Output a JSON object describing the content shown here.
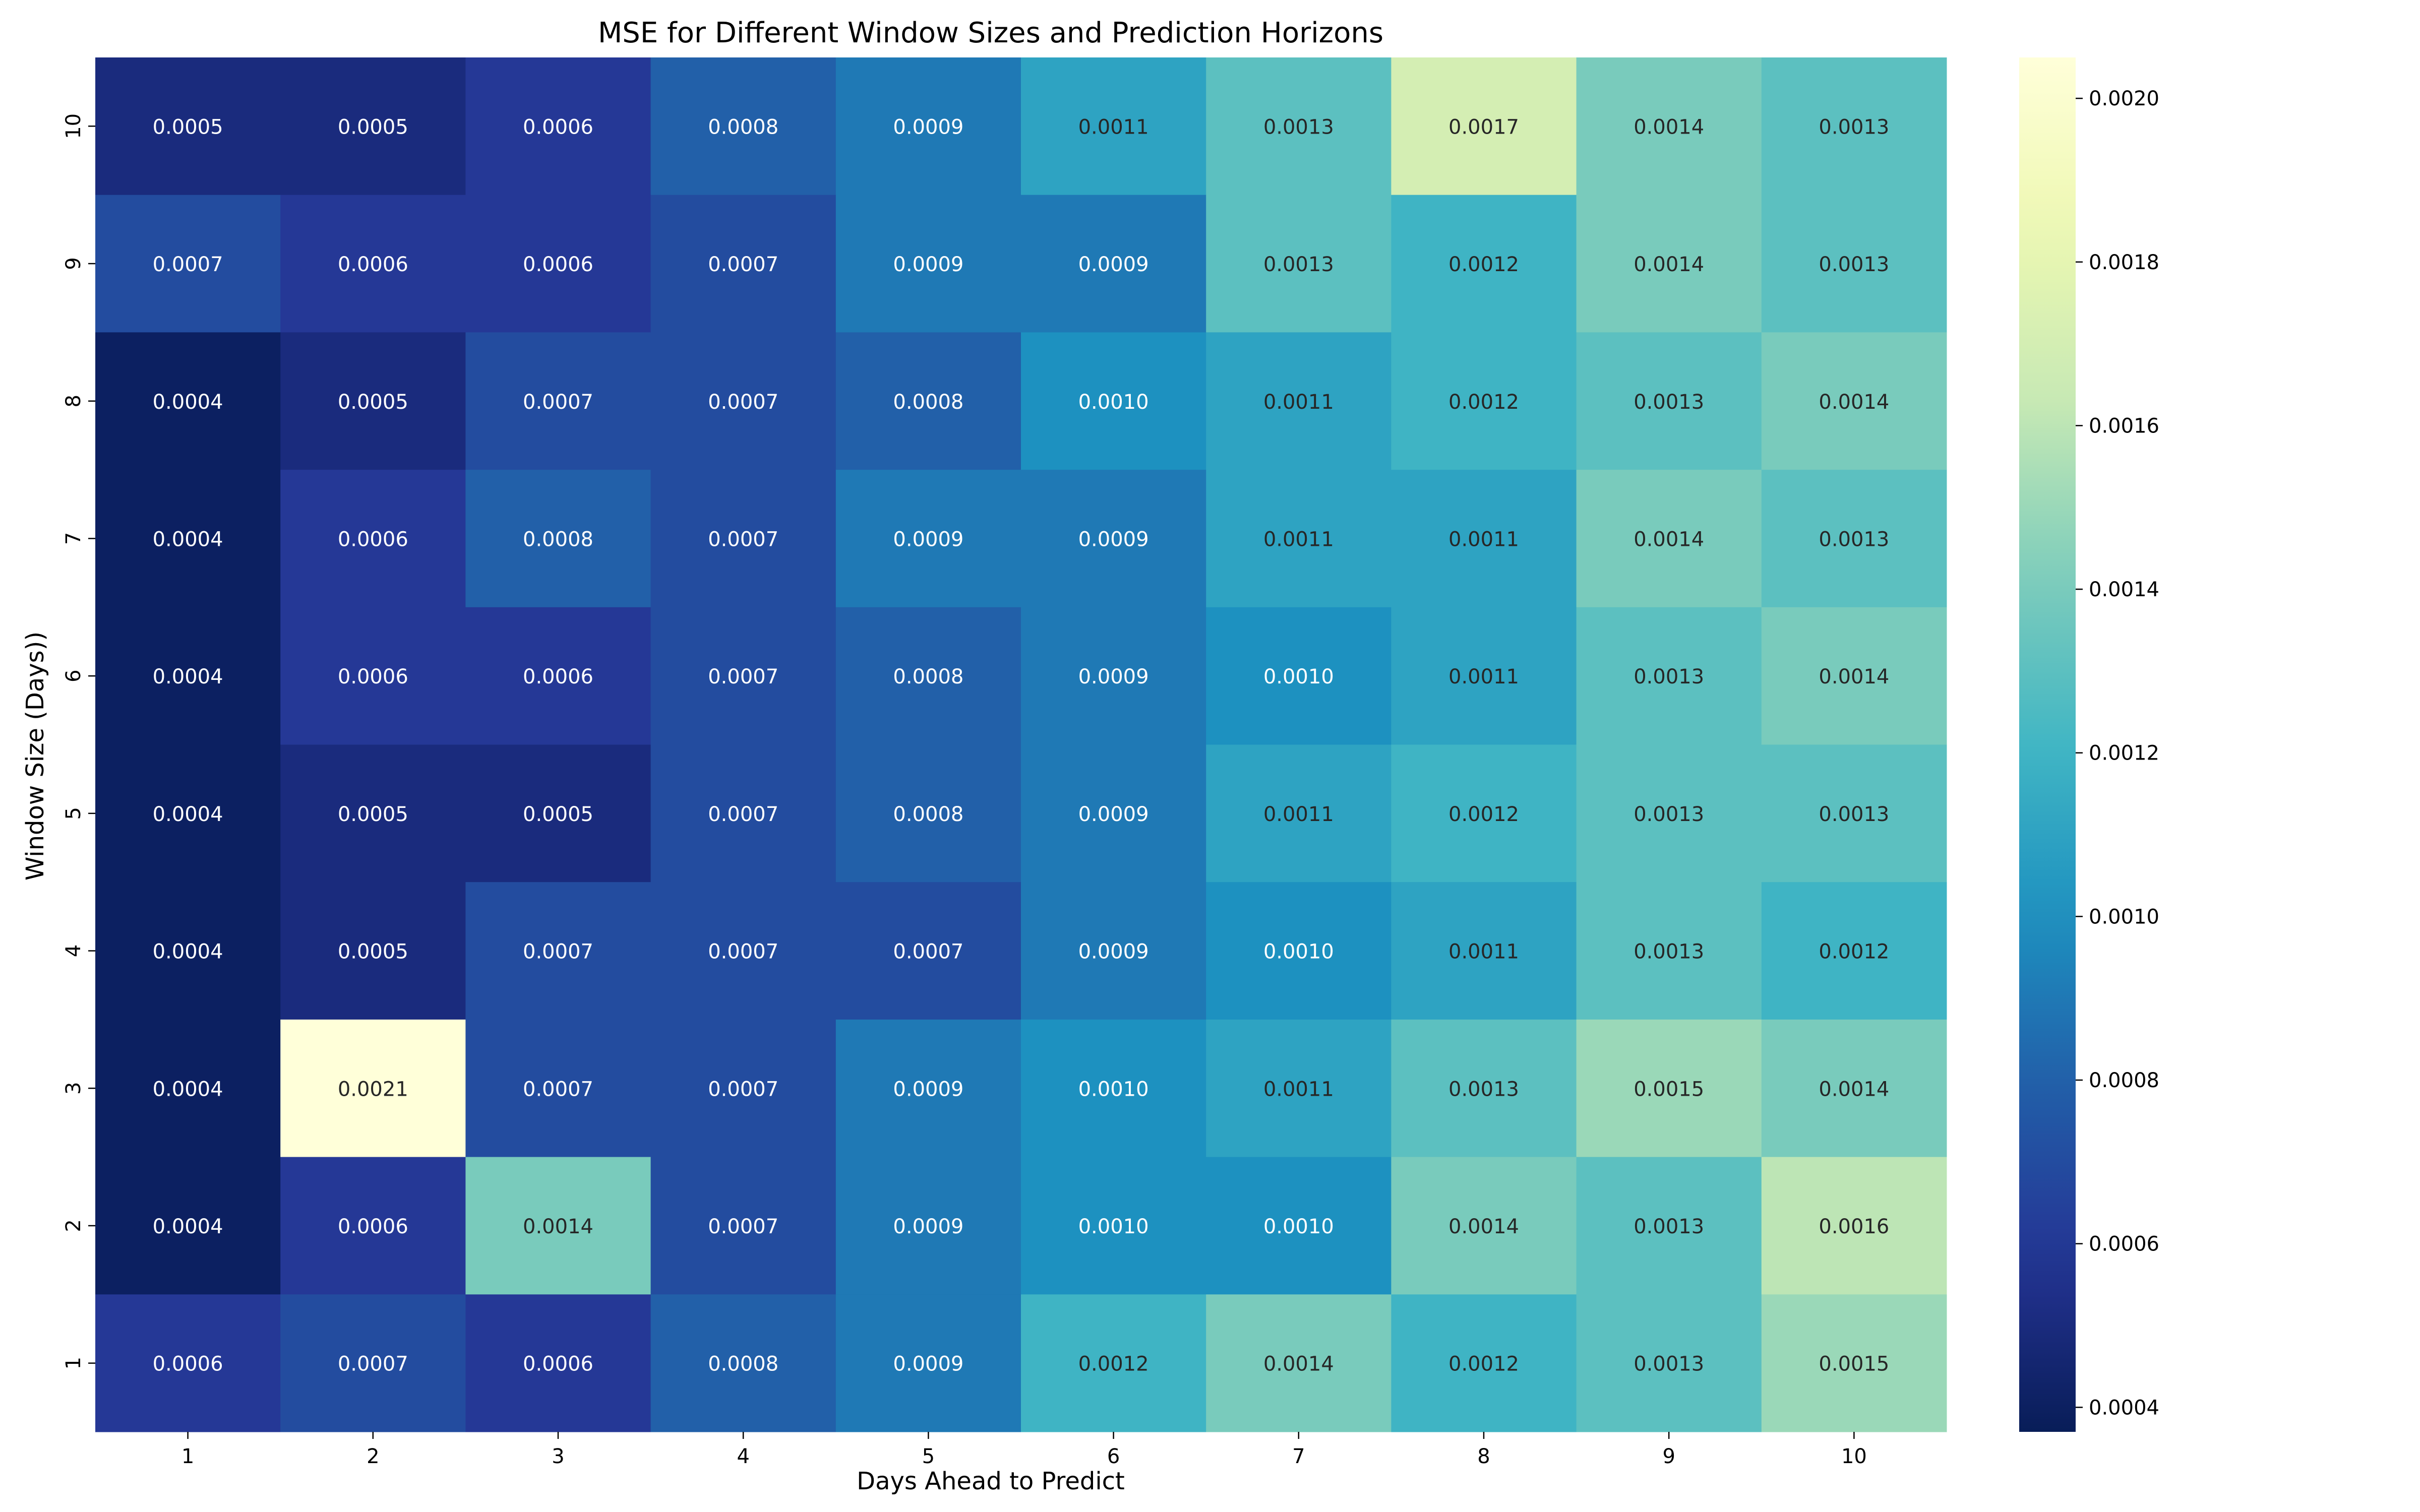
{
  "chart_data": {
    "type": "heatmap",
    "title": "MSE for Different Window Sizes and Prediction Horizons",
    "xlabel": "Days Ahead to Predict",
    "ylabel": "Window Size (Days))",
    "x_categories": [
      "1",
      "2",
      "3",
      "4",
      "5",
      "6",
      "7",
      "8",
      "9",
      "10"
    ],
    "y_categories_top_to_bottom": [
      "10",
      "9",
      "8",
      "7",
      "6",
      "5",
      "4",
      "3",
      "2",
      "1"
    ],
    "values_top_to_bottom": [
      [
        0.0005,
        0.0005,
        0.0006,
        0.0008,
        0.0009,
        0.0011,
        0.0013,
        0.0017,
        0.0014,
        0.0013
      ],
      [
        0.0007,
        0.0006,
        0.0006,
        0.0007,
        0.0009,
        0.0009,
        0.0013,
        0.0012,
        0.0014,
        0.0013
      ],
      [
        0.0004,
        0.0005,
        0.0007,
        0.0007,
        0.0008,
        0.001,
        0.0011,
        0.0012,
        0.0013,
        0.0014
      ],
      [
        0.0004,
        0.0006,
        0.0008,
        0.0007,
        0.0009,
        0.0009,
        0.0011,
        0.0011,
        0.0014,
        0.0013
      ],
      [
        0.0004,
        0.0006,
        0.0006,
        0.0007,
        0.0008,
        0.0009,
        0.001,
        0.0011,
        0.0013,
        0.0014
      ],
      [
        0.0004,
        0.0005,
        0.0005,
        0.0007,
        0.0008,
        0.0009,
        0.0011,
        0.0012,
        0.0013,
        0.0013
      ],
      [
        0.0004,
        0.0005,
        0.0007,
        0.0007,
        0.0007,
        0.0009,
        0.001,
        0.0011,
        0.0013,
        0.0012
      ],
      [
        0.0004,
        0.0021,
        0.0007,
        0.0007,
        0.0009,
        0.001,
        0.0011,
        0.0013,
        0.0015,
        0.0014
      ],
      [
        0.0004,
        0.0006,
        0.0014,
        0.0007,
        0.0009,
        0.001,
        0.001,
        0.0014,
        0.0013,
        0.0016
      ],
      [
        0.0006,
        0.0007,
        0.0006,
        0.0008,
        0.0009,
        0.0012,
        0.0014,
        0.0012,
        0.0013,
        0.0015
      ]
    ],
    "color_range": [
      0.00037,
      0.00205
    ],
    "colormap": "YlGnBu",
    "colorbar_ticks": [
      "0.0004",
      "0.0006",
      "0.0008",
      "0.0010",
      "0.0012",
      "0.0014",
      "0.0016",
      "0.0018",
      "0.0020"
    ],
    "annotation_light_text": "#ffffff",
    "annotation_dark_text": "#262626"
  }
}
